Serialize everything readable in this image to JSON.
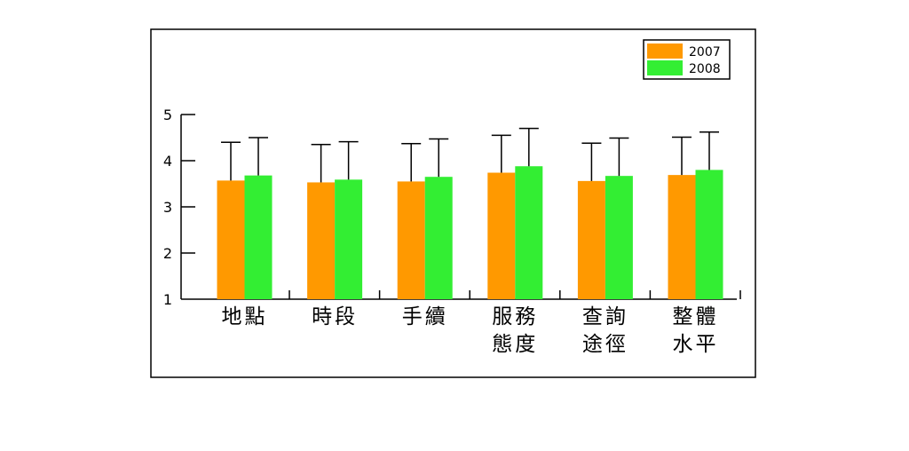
{
  "chart_data": {
    "type": "bar",
    "categories": [
      [
        "地點"
      ],
      [
        "時段"
      ],
      [
        "手續"
      ],
      [
        "服務",
        "態度"
      ],
      [
        "查詢",
        "途徑"
      ],
      [
        "整體",
        "水平"
      ]
    ],
    "series": [
      {
        "name": "2007",
        "color": "#ff9900",
        "values": [
          3.57,
          3.53,
          3.55,
          3.74,
          3.56,
          3.69
        ],
        "error_upper": [
          4.4,
          4.35,
          4.37,
          4.55,
          4.38,
          4.51
        ]
      },
      {
        "name": "2008",
        "color": "#33ee33",
        "values": [
          3.68,
          3.59,
          3.65,
          3.88,
          3.67,
          3.8
        ],
        "error_upper": [
          4.5,
          4.41,
          4.47,
          4.7,
          4.49,
          4.62
        ]
      }
    ],
    "ylim": [
      1,
      5
    ],
    "yticks": [
      "1",
      "2",
      "3",
      "4",
      "5"
    ],
    "legend": "top-right",
    "grid": false
  }
}
